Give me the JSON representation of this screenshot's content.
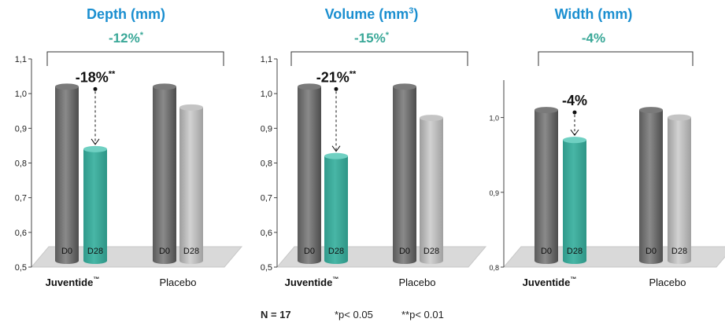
{
  "colors": {
    "title": "#1b8fd0",
    "change": "#3aa898",
    "teal": "#3aa898",
    "dark_bar": "#6b6b6b",
    "light_bar": "#a9a9a9",
    "floor": "#d9d9d9"
  },
  "chart_data": [
    {
      "type": "bar",
      "title": "Depth  (mm)",
      "title_sup": "",
      "title_suffix": "",
      "overall_change": "-12%",
      "overall_sig": "*",
      "treat_change": "-18%",
      "treat_sig": "**",
      "ylim": [
        0.5,
        1.1
      ],
      "yticks": [
        "0,5",
        "0,6",
        "0,7",
        "0,8",
        "0,9",
        "1,0",
        "1,1"
      ],
      "ytick_values": [
        0.5,
        0.6,
        0.7,
        0.8,
        0.9,
        1.0,
        1.1
      ],
      "groups": [
        {
          "name": "Juventide",
          "mark": "™",
          "bold": true,
          "bars": [
            {
              "label": "D0",
              "value": 1.02,
              "style": "dark"
            },
            {
              "label": "D28",
              "value": 0.84,
              "style": "teal"
            }
          ]
        },
        {
          "name": "Placebo",
          "mark": "",
          "bold": false,
          "bars": [
            {
              "label": "D0",
              "value": 1.02,
              "style": "dark"
            },
            {
              "label": "D28",
              "value": 0.96,
              "style": "light"
            }
          ]
        }
      ]
    },
    {
      "type": "bar",
      "title": "Volume (mm",
      "title_sup": "3",
      "title_suffix": ")",
      "overall_change": "-15%",
      "overall_sig": "*",
      "treat_change": "-21%",
      "treat_sig": "**",
      "ylim": [
        0.5,
        1.1
      ],
      "yticks": [
        "0,5",
        "0,6",
        "0,7",
        "0,8",
        "0,9",
        "1,0",
        "1,1"
      ],
      "ytick_values": [
        0.5,
        0.6,
        0.7,
        0.8,
        0.9,
        1.0,
        1.1
      ],
      "groups": [
        {
          "name": "Juventide",
          "mark": "™",
          "bold": true,
          "bars": [
            {
              "label": "D0",
              "value": 1.02,
              "style": "dark"
            },
            {
              "label": "D28",
              "value": 0.82,
              "style": "teal"
            }
          ]
        },
        {
          "name": "Placebo",
          "mark": "",
          "bold": false,
          "bars": [
            {
              "label": "D0",
              "value": 1.02,
              "style": "dark"
            },
            {
              "label": "D28",
              "value": 0.93,
              "style": "light"
            }
          ]
        }
      ]
    },
    {
      "type": "bar",
      "title": "Width (mm)",
      "title_sup": "",
      "title_suffix": "",
      "overall_change": "-4%",
      "overall_sig": "",
      "treat_change": "-4%",
      "treat_sig": "",
      "ylim": [
        0.8,
        1.05
      ],
      "yticks": [
        "0,8",
        "0,9",
        "1,0"
      ],
      "ytick_values": [
        0.8,
        0.9,
        1.0
      ],
      "groups": [
        {
          "name": "Juventide",
          "mark": "™",
          "bold": true,
          "bars": [
            {
              "label": "D0",
              "value": 1.01,
              "style": "dark"
            },
            {
              "label": "D28",
              "value": 0.97,
              "style": "teal"
            }
          ]
        },
        {
          "name": "Placebo",
          "mark": "",
          "bold": false,
          "bars": [
            {
              "label": "D0",
              "value": 1.01,
              "style": "dark"
            },
            {
              "label": "D28",
              "value": 1.0,
              "style": "light"
            }
          ]
        }
      ]
    }
  ],
  "footer": {
    "n": "N = 17",
    "p1": "*p< 0.05",
    "p2": "**p< 0.01"
  }
}
